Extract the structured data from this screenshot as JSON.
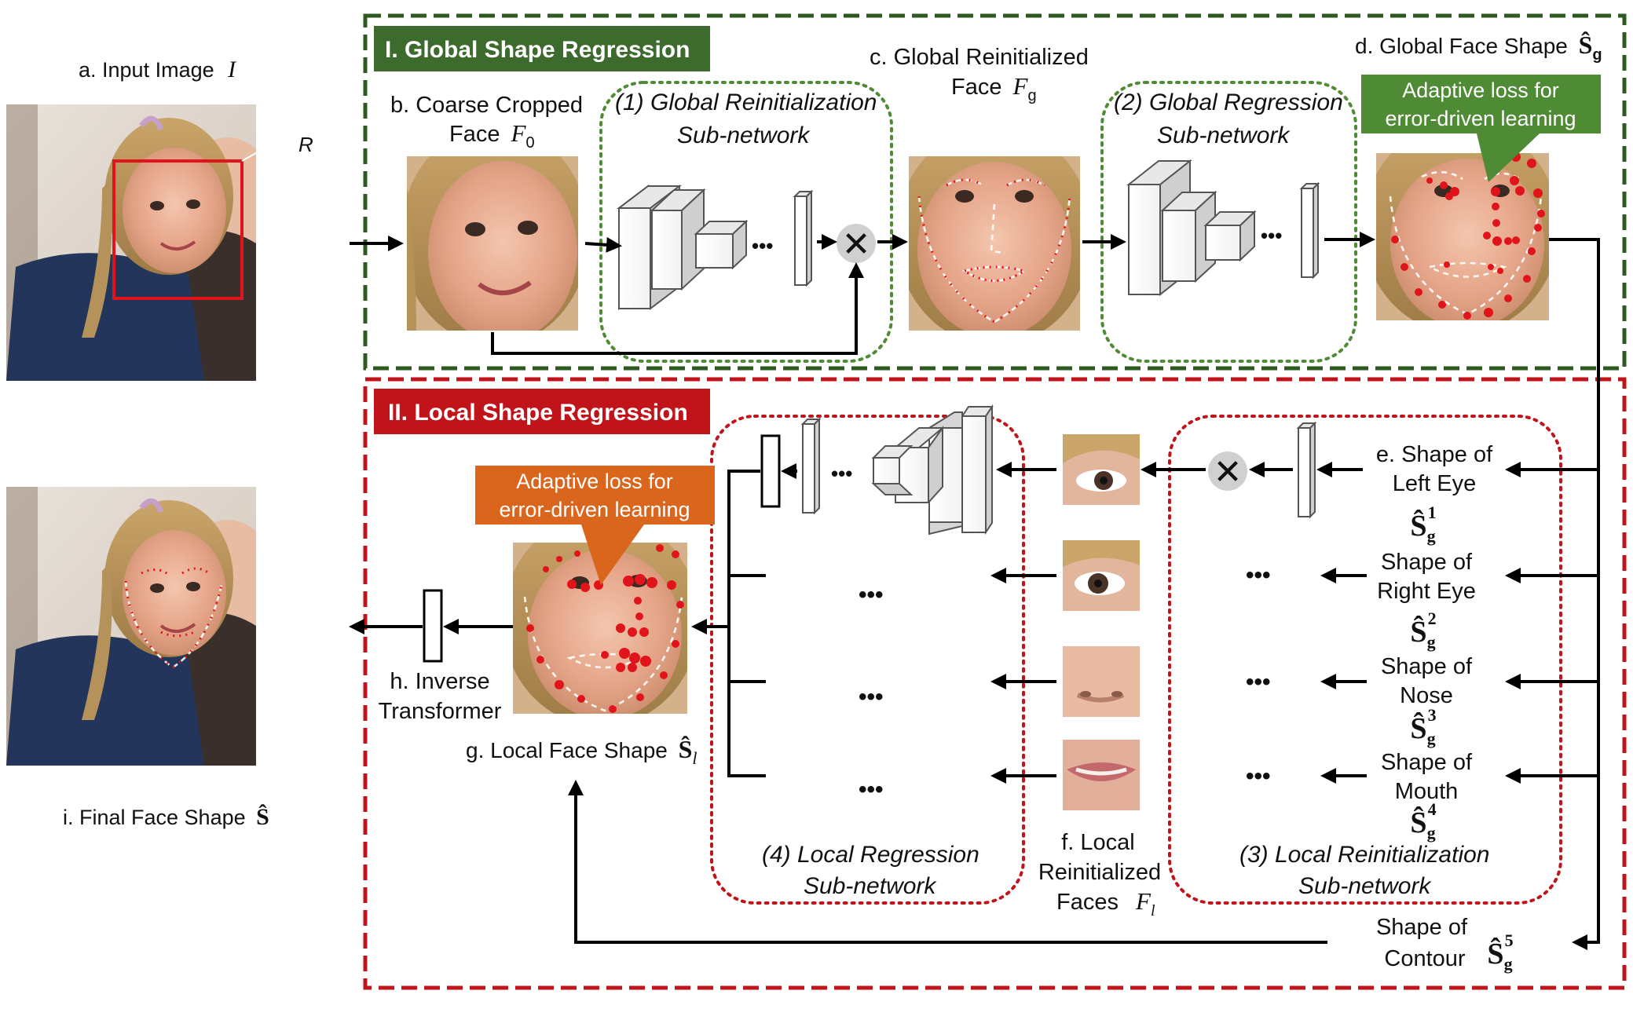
{
  "global_section": {
    "title": "I. Global Shape Regression",
    "accent": "#3d6b2e",
    "border": "#2e5a22"
  },
  "local_section": {
    "title": "II. Local Shape Regression",
    "accent": "#c0141a",
    "border": "#c0141a"
  },
  "labels": {
    "input_image": "a. Input Image",
    "input_symbol": "I",
    "r_label": "R",
    "coarse_line1": "b. Coarse Cropped",
    "coarse_line2": "Face",
    "coarse_sym": "F",
    "coarse_sub": "0",
    "reinit_line1": "c. Global Reinitialized",
    "reinit_line2": "Face",
    "reinit_sym": "F",
    "reinit_sub": "g",
    "global_shape": "d. Global Face Shape",
    "global_shape_sym": "Ŝ",
    "global_shape_sub": "g",
    "local_face_shape": "g. Local Face Shape",
    "local_face_sym": "Ŝ",
    "local_face_sub": "l",
    "inverse_line1": "h. Inverse",
    "inverse_line2": "Transformer",
    "final_shape": "i. Final Face Shape",
    "final_sym": "Ŝ",
    "local_faces_line1": "f. Local",
    "local_faces_line2": "Reinitialized",
    "local_faces_line3": "Faces",
    "local_faces_sym": "F",
    "local_faces_sub": "l"
  },
  "subnetworks": {
    "global_reinit_1": "(1) Global Reinitialization",
    "global_reinit_2": "Sub-network",
    "global_reg_1": "(2) Global Regression",
    "global_reg_2": "Sub-network",
    "local_reinit_1": "(3) Local Reinitialization",
    "local_reinit_2": "Sub-network",
    "local_reg_1": "(4) Local Regression",
    "local_reg_2": "Sub-network"
  },
  "callouts": {
    "global_1": "Adaptive loss for",
    "global_2": "error-driven learning",
    "global_color": "#4f8a35",
    "local_1": "Adaptive loss for",
    "local_2": "error-driven learning",
    "local_color": "#d9661c"
  },
  "parts": [
    {
      "line1": "e. Shape of",
      "line2": "Left Eye",
      "sym": "Ŝ",
      "sub": "g",
      "sup": "1"
    },
    {
      "line1": "Shape of",
      "line2": "Right Eye",
      "sym": "Ŝ",
      "sub": "g",
      "sup": "2"
    },
    {
      "line1": "Shape of",
      "line2": "Nose",
      "sym": "Ŝ",
      "sub": "g",
      "sup": "3"
    },
    {
      "line1": "Shape of",
      "line2": "Mouth",
      "sym": "Ŝ",
      "sub": "g",
      "sup": "4"
    },
    {
      "line1": "Shape of",
      "line2": "Contour",
      "sym": "Ŝ",
      "sub": "g",
      "sup": "5"
    }
  ],
  "ellipsis": "•••",
  "multiply_symbol": "✕"
}
